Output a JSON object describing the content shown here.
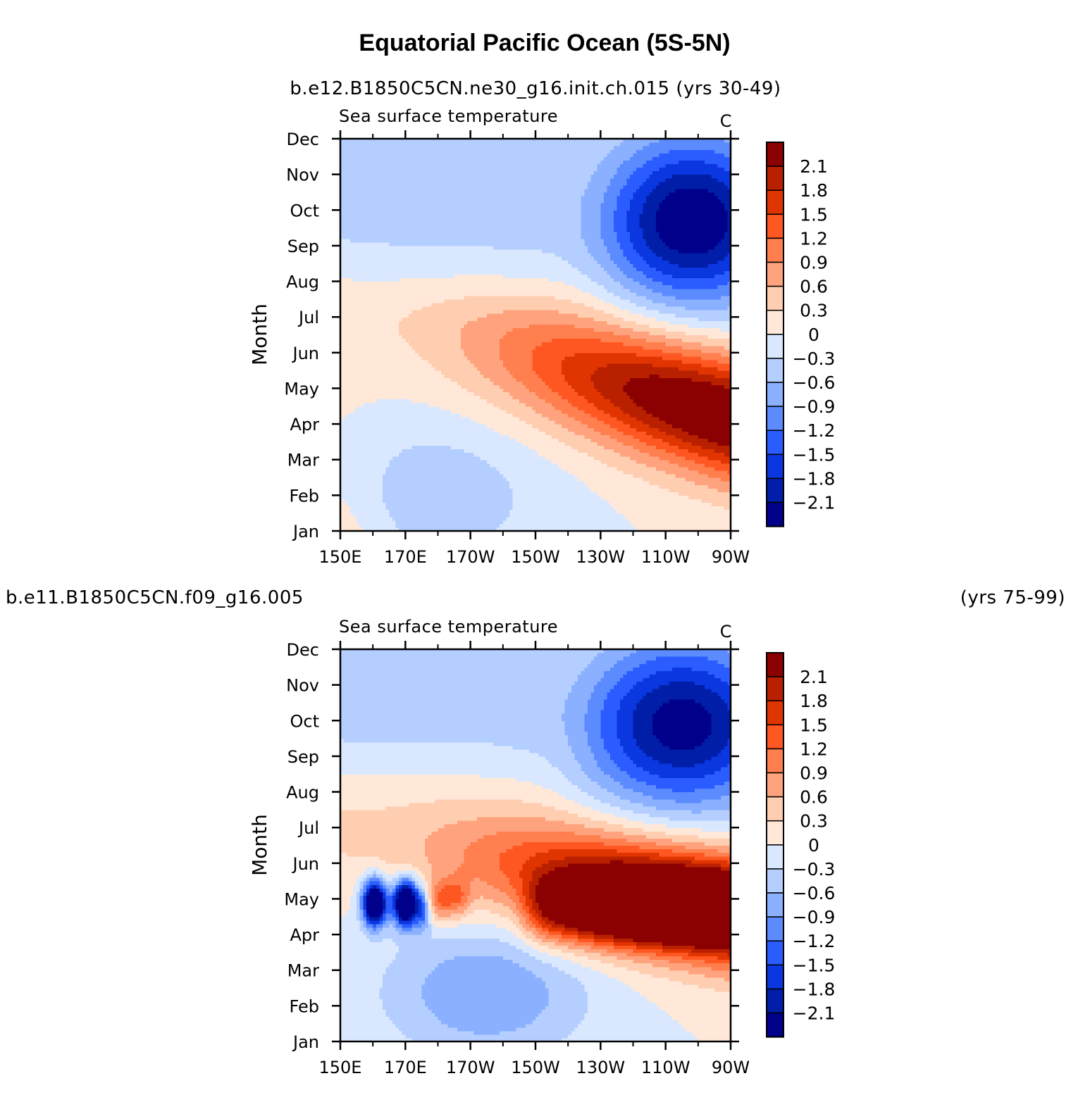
{
  "figure": {
    "title": "Equatorial Pacific Ocean (5S-5N)"
  },
  "chart_data": [
    {
      "type": "heatmap",
      "case_label": "b.e12.B1850C5CN.ne30_g16.init.ch.015 (yrs 30-49)",
      "left_string": "Sea surface temperature",
      "right_string": "C",
      "ylabel": "Month",
      "xlabel": "",
      "x_ticks": [
        "150E",
        "170E",
        "170W",
        "150W",
        "130W",
        "110W",
        "90W"
      ],
      "x_values": [
        150,
        170,
        190,
        210,
        230,
        250,
        270
      ],
      "xlim": [
        150,
        270
      ],
      "y_ticks": [
        "Jan",
        "Feb",
        "Mar",
        "Apr",
        "May",
        "Jun",
        "Jul",
        "Aug",
        "Sep",
        "Oct",
        "Nov",
        "Dec"
      ],
      "ylim": [
        1,
        12
      ],
      "contour_levels": [
        -2.1,
        -1.8,
        -1.5,
        -1.2,
        -0.9,
        -0.6,
        -0.3,
        0,
        0.3,
        0.6,
        0.9,
        1.2,
        1.5,
        1.8,
        2.1
      ],
      "colorbar_labels": [
        "2.1",
        "1.8",
        "1.5",
        "1.2",
        "0.9",
        "0.6",
        "0.3",
        "0",
        "−0.3",
        "−0.6",
        "−0.9",
        "−1.2",
        "−1.5",
        "−1.8",
        "−2.1"
      ],
      "colors": [
        "#8b0000",
        "#b82000",
        "#e03500",
        "#ff5722",
        "#ff7f4f",
        "#ffa37e",
        "#ffcdb0",
        "#ffe8d8",
        "#d9e8ff",
        "#b4ceff",
        "#8ab0ff",
        "#5b8bff",
        "#2a5cff",
        "#0a37e0",
        "#001ea8",
        "#00008a"
      ]
    },
    {
      "type": "heatmap",
      "case_label_left": "b.e11.B1850C5CN.f09_g16.005",
      "case_label_right": "(yrs 75-99)",
      "left_string": "Sea surface temperature",
      "right_string": "C",
      "ylabel": "Month",
      "xlabel": "",
      "x_ticks": [
        "150E",
        "170E",
        "170W",
        "150W",
        "130W",
        "110W",
        "90W"
      ],
      "x_values": [
        150,
        170,
        190,
        210,
        230,
        250,
        270
      ],
      "xlim": [
        150,
        270
      ],
      "y_ticks": [
        "Jan",
        "Feb",
        "Mar",
        "Apr",
        "May",
        "Jun",
        "Jul",
        "Aug",
        "Sep",
        "Oct",
        "Nov",
        "Dec"
      ],
      "ylim": [
        1,
        12
      ],
      "contour_levels": [
        -2.1,
        -1.8,
        -1.5,
        -1.2,
        -0.9,
        -0.6,
        -0.3,
        0,
        0.3,
        0.6,
        0.9,
        1.2,
        1.5,
        1.8,
        2.1
      ],
      "colorbar_labels": [
        "2.1",
        "1.8",
        "1.5",
        "1.2",
        "0.9",
        "0.6",
        "0.3",
        "0",
        "−0.3",
        "−0.6",
        "−0.9",
        "−1.2",
        "−1.5",
        "−1.8",
        "−2.1"
      ],
      "colors": [
        "#8b0000",
        "#b82000",
        "#e03500",
        "#ff5722",
        "#ff7f4f",
        "#ffa37e",
        "#ffcdb0",
        "#ffe8d8",
        "#d9e8ff",
        "#b4ceff",
        "#8ab0ff",
        "#5b8bff",
        "#2a5cff",
        "#0a37e0",
        "#001ea8",
        "#00008a"
      ]
    }
  ]
}
